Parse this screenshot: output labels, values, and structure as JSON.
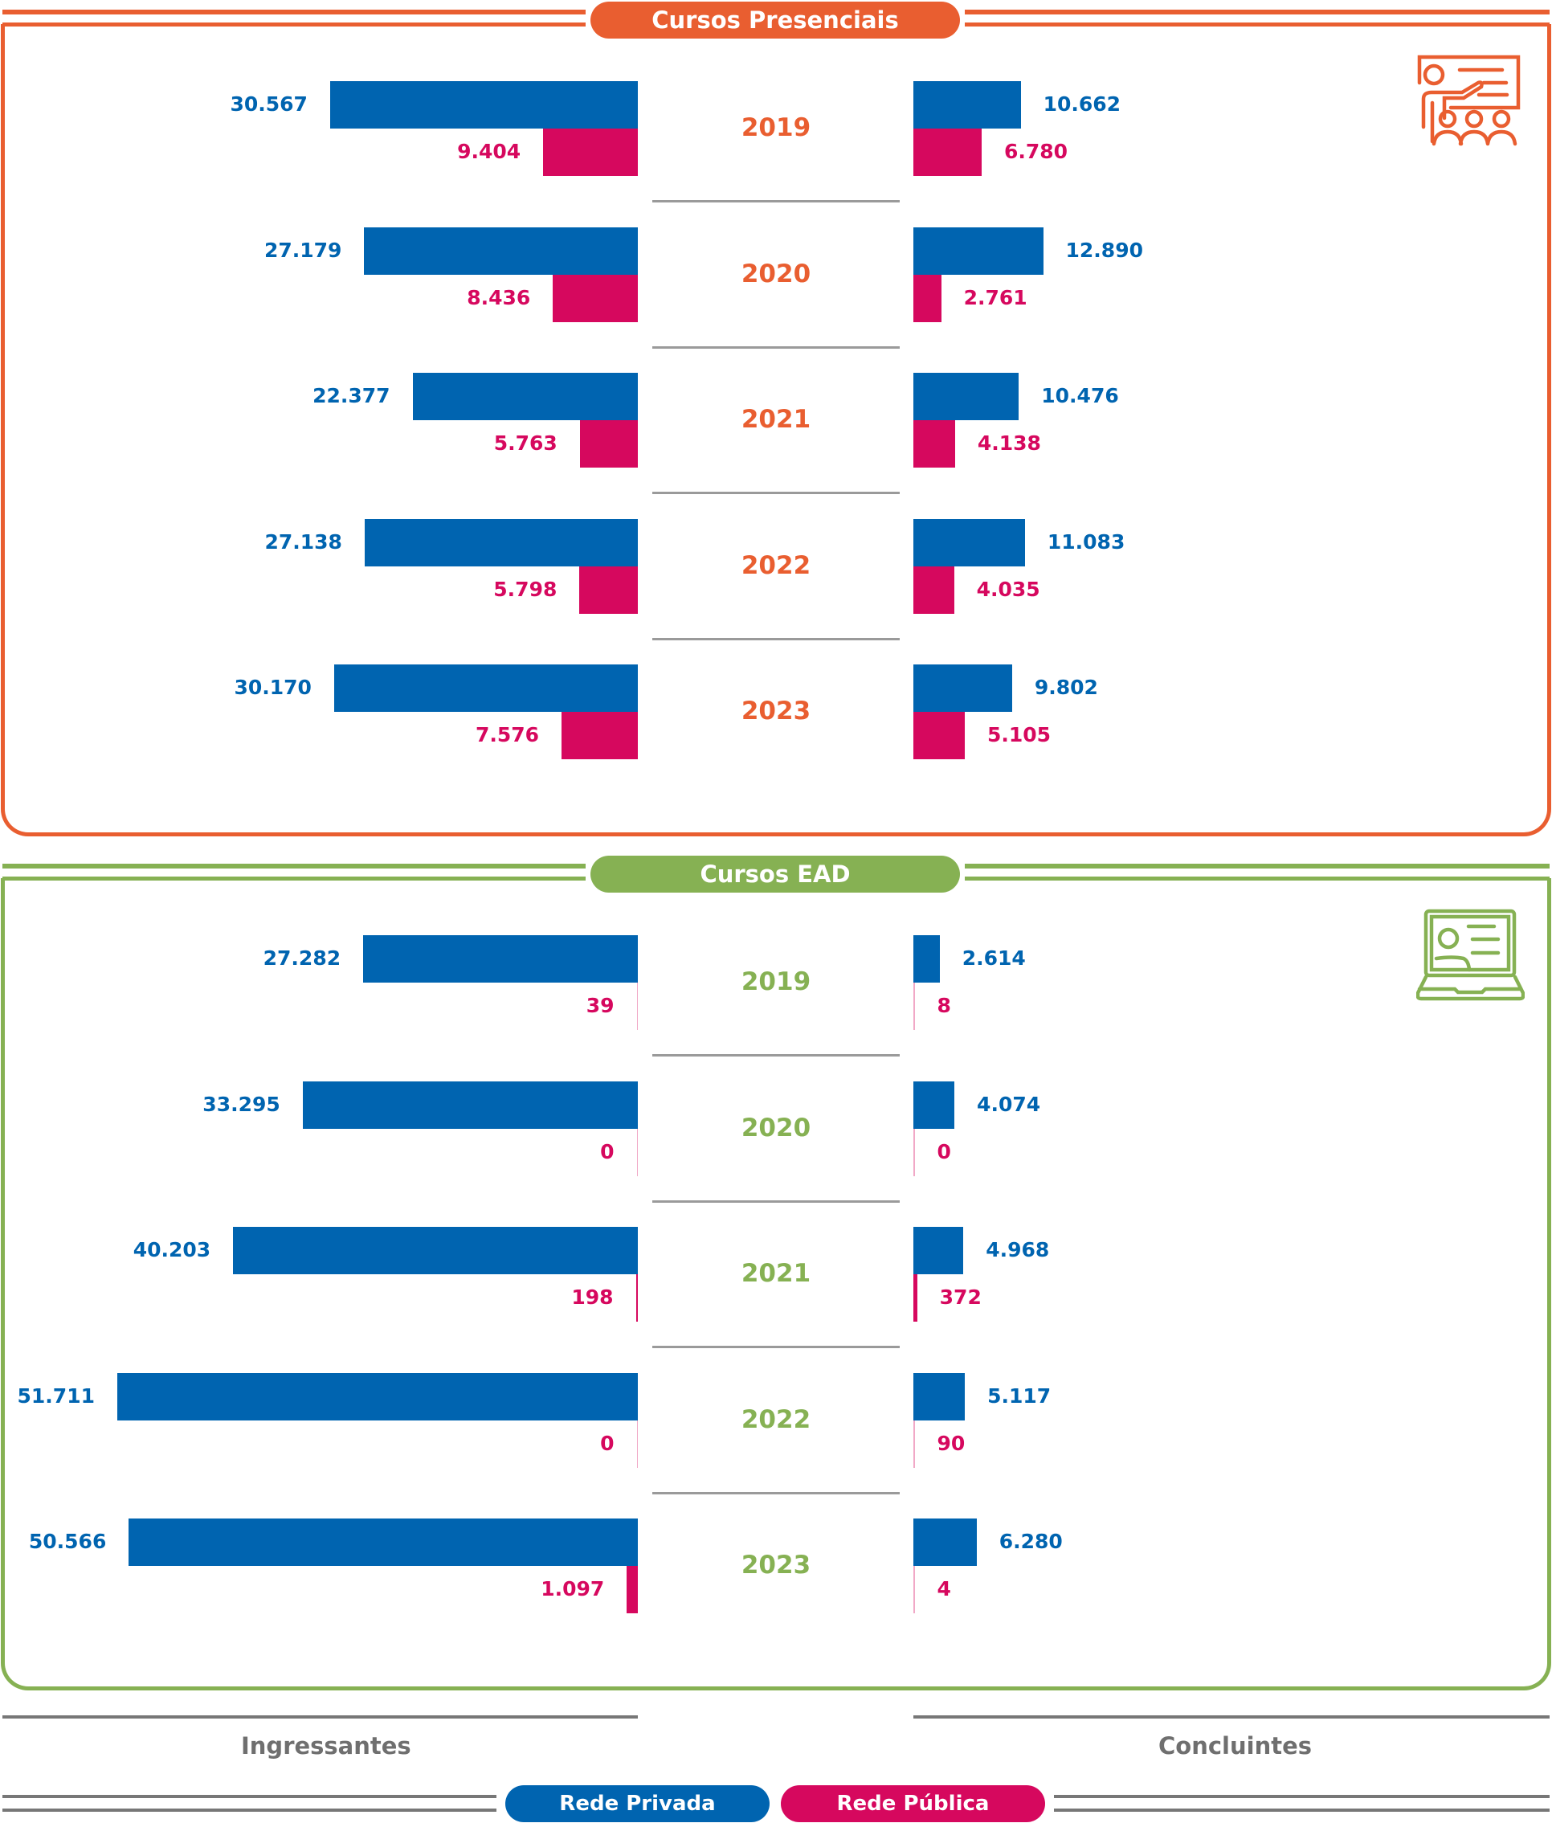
{
  "colors": {
    "presencial": "#E95E30",
    "ead": "#86B153",
    "privada": "#0064B0",
    "publica": "#D6085E",
    "axis": "#8a8a8a"
  },
  "chart_data": [
    {
      "type": "bar",
      "title": "Cursos Presenciais",
      "icon": "classroom-presentation-icon",
      "categories": [
        "2019",
        "2020",
        "2021",
        "2022",
        "2023"
      ],
      "ingressantes": {
        "privada": [
          30567,
          27179,
          22377,
          27138,
          30170
        ],
        "publica": [
          9404,
          8436,
          5763,
          5798,
          7576
        ]
      },
      "concluintes": {
        "privada": [
          10662,
          12890,
          10476,
          11083,
          9802
        ],
        "publica": [
          6780,
          2761,
          4138,
          4035,
          5105
        ]
      },
      "labels": {
        "ingressantes_privada": [
          "30.567",
          "27.179",
          "22.377",
          "27.138",
          "30.170"
        ],
        "ingressantes_publica": [
          "9.404",
          "8.436",
          "5.763",
          "5.798",
          "7.576"
        ],
        "concluintes_privada": [
          "10.662",
          "12.890",
          "10.476",
          "11.083",
          "9.802"
        ],
        "concluintes_publica": [
          "6.780",
          "2.761",
          "4.138",
          "4.035",
          "5.105"
        ]
      }
    },
    {
      "type": "bar",
      "title": "Cursos EAD",
      "icon": "laptop-video-user-icon",
      "categories": [
        "2019",
        "2020",
        "2021",
        "2022",
        "2023"
      ],
      "ingressantes": {
        "privada": [
          27282,
          33295,
          40203,
          51711,
          50566
        ],
        "publica": [
          39,
          0,
          198,
          0,
          1097
        ]
      },
      "concluintes": {
        "privada": [
          2614,
          4074,
          4968,
          5117,
          6280
        ],
        "publica": [
          8,
          0,
          372,
          90,
          4
        ]
      },
      "labels": {
        "ingressantes_privada": [
          "27.282",
          "33.295",
          "40.203",
          "51.711",
          "50.566"
        ],
        "ingressantes_publica": [
          "39",
          "0",
          "198",
          "0",
          "1.097"
        ],
        "concluintes_privada": [
          "2.614",
          "4.074",
          "4.968",
          "5.117",
          "6.280"
        ],
        "concluintes_publica": [
          "8",
          "0",
          "372",
          "90",
          "4"
        ]
      }
    }
  ],
  "axes": {
    "left": "Ingressantes",
    "right": "Concluintes"
  },
  "legend": {
    "privada": "Rede Privada",
    "publica": "Rede Pública",
    "placement": "bottom"
  }
}
